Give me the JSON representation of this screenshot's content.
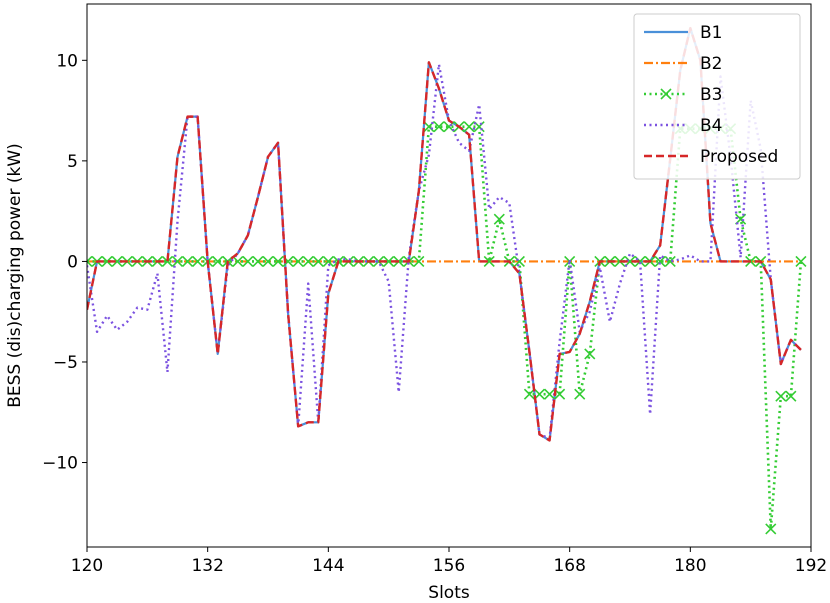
{
  "chart_data": {
    "type": "line",
    "title": "",
    "xlabel": "Slots",
    "ylabel": "BESS (dis)charging power (kW)",
    "xlim": [
      120,
      192
    ],
    "ylim": [
      -14.2,
      12.8
    ],
    "x_ticks": [
      120,
      132,
      144,
      156,
      168,
      180,
      192
    ],
    "y_ticks": [
      -10,
      -5,
      0,
      5,
      10
    ],
    "y_tick_labels": [
      "−10",
      "−5",
      "0",
      "5",
      "10"
    ],
    "grid": false,
    "legend_position": "top-right",
    "x": [
      120,
      121,
      122,
      123,
      124,
      125,
      126,
      127,
      128,
      129,
      130,
      131,
      132,
      133,
      134,
      135,
      136,
      137,
      138,
      139,
      140,
      141,
      142,
      143,
      144,
      145,
      146,
      147,
      148,
      149,
      150,
      151,
      152,
      153,
      154,
      155,
      156,
      157,
      158,
      159,
      160,
      161,
      162,
      163,
      164,
      165,
      166,
      167,
      168,
      169,
      170,
      171,
      172,
      173,
      174,
      175,
      176,
      177,
      178,
      179,
      180,
      181,
      182,
      183,
      184,
      185,
      186,
      187,
      188,
      189,
      190,
      191
    ],
    "series": [
      {
        "name": "B1",
        "color": "#4a90d9",
        "style": "solid",
        "values": [
          -2.4,
          0,
          0,
          0,
          0,
          0,
          0,
          0,
          0,
          5.2,
          7.2,
          7.2,
          0,
          -4.6,
          0,
          0.4,
          1.3,
          3.2,
          5.2,
          5.9,
          -2.6,
          -8.2,
          -8.0,
          -8.0,
          -1.6,
          0,
          0,
          0,
          0,
          0,
          0,
          0,
          0,
          3.5,
          9.9,
          8.6,
          7.0,
          6.7,
          6.3,
          0,
          0,
          0,
          0,
          -0.6,
          -4.5,
          -8.6,
          -8.9,
          -4.6,
          -4.5,
          -3.6,
          -2.0,
          0,
          0,
          0,
          0,
          0,
          0,
          0.8,
          5.1,
          9.5,
          11.6,
          10.0,
          1.9,
          0,
          0,
          0,
          0,
          0,
          -0.9,
          -5.1,
          -3.9,
          -4.4
        ]
      },
      {
        "name": "B2",
        "color": "#ff7f0e",
        "style": "dashdot",
        "values": [
          0,
          0,
          0,
          0,
          0,
          0,
          0,
          0,
          0,
          0,
          0,
          0,
          0,
          0,
          0,
          0,
          0,
          0,
          0,
          0,
          0,
          0,
          0,
          0,
          0,
          0,
          0,
          0,
          0,
          0,
          0,
          0,
          0,
          0,
          0,
          0,
          0,
          0,
          0,
          0,
          0,
          0,
          0,
          0,
          0,
          0,
          0,
          0,
          0,
          0,
          0,
          0,
          0,
          0,
          0,
          0,
          0,
          0,
          0,
          0,
          0,
          0,
          0,
          0,
          0,
          0,
          0,
          0,
          0,
          0,
          0,
          0
        ]
      },
      {
        "name": "B3",
        "color": "#33cc33",
        "style": "dotted-x",
        "values": [
          0,
          0,
          0,
          0,
          0,
          0,
          0,
          0,
          0,
          0,
          0,
          0,
          0,
          0,
          0,
          0,
          0,
          0,
          0,
          0,
          0,
          0,
          0,
          0,
          0,
          0,
          0,
          0,
          0,
          0,
          0,
          0,
          0,
          0,
          6.7,
          6.7,
          6.7,
          6.7,
          6.7,
          6.7,
          0,
          2.1,
          0,
          0,
          -6.6,
          -6.6,
          -6.6,
          -6.6,
          0,
          -6.6,
          -4.6,
          0,
          0,
          0,
          0,
          0,
          0,
          0,
          0,
          6.6,
          6.6,
          6.6,
          6.6,
          6.6,
          6.6,
          2.1,
          0,
          0,
          -13.3,
          -6.7,
          -6.7,
          0
        ]
      },
      {
        "name": "B4",
        "color": "#7b52e0",
        "style": "dotted",
        "values": [
          -0.2,
          -3.5,
          -2.7,
          -3.4,
          -3.0,
          -2.3,
          -2.4,
          -0.6,
          -5.5,
          2.0,
          7.2,
          7.2,
          0,
          -4.6,
          -0.2,
          0.4,
          1.3,
          3.2,
          5.2,
          5.9,
          -2.6,
          -8.2,
          -1.1,
          -8.0,
          -0.2,
          0.1,
          0.1,
          0,
          0,
          0,
          -1.0,
          -6.5,
          0.2,
          3.5,
          5.3,
          9.8,
          7.0,
          5.9,
          5.5,
          7.8,
          2.6,
          3.2,
          2.9,
          -0.6,
          -4.5,
          -8.6,
          -8.8,
          -4.0,
          0.1,
          -3.5,
          -2.5,
          -0.3,
          -3.0,
          -1.1,
          0.4,
          0,
          -7.6,
          0.3,
          0,
          0.1,
          0.3,
          0,
          0,
          9.2,
          5.2,
          0.2,
          8.0,
          5.6,
          -0.9,
          -5.1,
          -3.9,
          -4.4
        ]
      },
      {
        "name": "Proposed",
        "color": "#d62728",
        "style": "dashed",
        "values": [
          -2.4,
          0,
          0,
          0,
          0,
          0,
          0,
          0,
          0,
          5.2,
          7.2,
          7.2,
          0,
          -4.6,
          0,
          0.4,
          1.3,
          3.2,
          5.2,
          5.9,
          -2.6,
          -8.2,
          -8.0,
          -8.0,
          -1.6,
          0,
          0,
          0,
          0,
          0,
          0,
          0,
          0,
          3.5,
          9.9,
          8.6,
          7.0,
          6.7,
          6.3,
          0,
          0,
          0,
          0,
          -0.6,
          -4.5,
          -8.6,
          -8.9,
          -4.6,
          -4.5,
          -3.6,
          -2.0,
          0,
          0,
          0,
          0,
          0,
          0,
          0.8,
          5.1,
          9.5,
          11.6,
          10.0,
          1.9,
          0,
          0,
          0,
          0,
          0,
          -0.9,
          -5.1,
          -3.9,
          -4.4
        ]
      }
    ]
  }
}
